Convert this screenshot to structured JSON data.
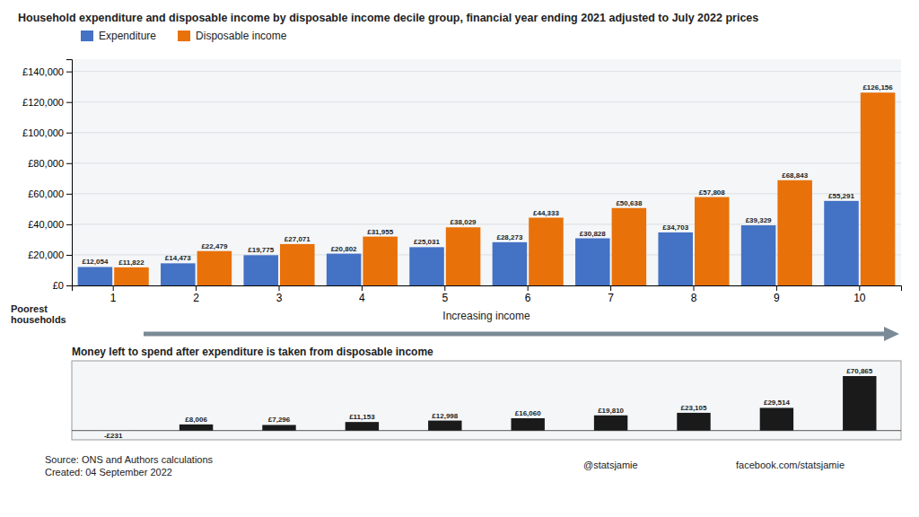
{
  "chart_data": [
    {
      "type": "bar",
      "title": "Household expenditure and disposable income by disposable income decile group, financial year ending 2021 adjusted to July 2022 prices",
      "categories": [
        "1",
        "2",
        "3",
        "4",
        "5",
        "6",
        "7",
        "8",
        "9",
        "10"
      ],
      "series": [
        {
          "name": "Expenditure",
          "color": "#4472C4",
          "values": [
            12054,
            14473,
            19775,
            20802,
            25031,
            28273,
            30828,
            34703,
            39329,
            55291
          ],
          "value_labels": [
            "£12,054",
            "£14,473",
            "£19,775",
            "£20,802",
            "£25,031",
            "£28,273",
            "£30,828",
            "£34,703",
            "£39,329",
            "£55,291"
          ]
        },
        {
          "name": "Disposable income",
          "color": "#E8710A",
          "values": [
            11822,
            22479,
            27071,
            31955,
            38029,
            44333,
            50638,
            57808,
            68843,
            126156
          ],
          "value_labels": [
            "£11,822",
            "£22,479",
            "£27,071",
            "£31,955",
            "£38,029",
            "£44,333",
            "£50,638",
            "£57,808",
            "£68,843",
            "£126,156"
          ]
        }
      ],
      "xlabel": "Increasing income",
      "ylim": [
        0,
        148000
      ],
      "yticks": [
        {
          "value": 0,
          "label": "£0"
        },
        {
          "value": 20000,
          "label": "£20,000"
        },
        {
          "value": 40000,
          "label": "£40,000"
        },
        {
          "value": 60000,
          "label": "£60,000"
        },
        {
          "value": 80000,
          "label": "£80,000"
        },
        {
          "value": 100000,
          "label": "£100,000"
        },
        {
          "value": 120000,
          "label": "£120,000"
        },
        {
          "value": 140000,
          "label": "£140,000"
        }
      ],
      "grid": true,
      "legend": "upper left",
      "data_labels": true,
      "annotations": [
        "Poorest\nhouseholds"
      ]
    },
    {
      "type": "bar",
      "title": "Money left to spend after expenditure is taken from disposable income",
      "categories": [
        "1",
        "2",
        "3",
        "4",
        "5",
        "6",
        "7",
        "8",
        "9",
        "10"
      ],
      "values": [
        -231,
        8006,
        7296,
        11153,
        12998,
        16060,
        19810,
        23105,
        29514,
        70865
      ],
      "value_labels": [
        "-£231",
        "£8,006",
        "£7,296",
        "£11,153",
        "£12,998",
        "£16,060",
        "£19,810",
        "£23,105",
        "£29,514",
        "£70,865"
      ],
      "colors": [
        "#888888",
        "#1a1a1a",
        "#1a1a1a",
        "#1a1a1a",
        "#1a1a1a",
        "#1a1a1a",
        "#1a1a1a",
        "#1a1a1a",
        "#1a1a1a",
        "#1a1a1a"
      ],
      "ylim": [
        -12000,
        90707.2
      ],
      "yticks": [
        0
      ],
      "tick_labels": false,
      "data_labels": true,
      "annotations": [
        "Source: ONS and Authors calculations\nCreated: 04 September 2022",
        "@statsjamie",
        "facebook.com/statsjamie"
      ]
    }
  ]
}
